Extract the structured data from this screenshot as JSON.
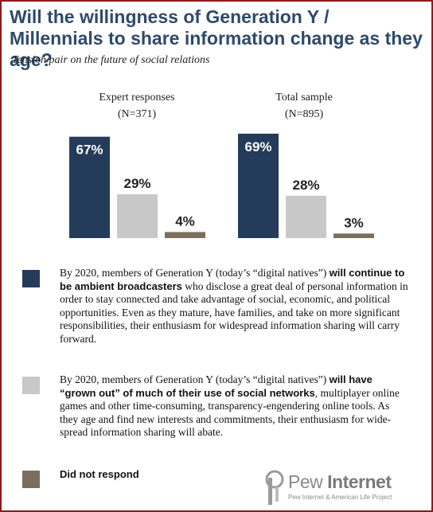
{
  "title": "Will the willingness of Generation Y / Millennials to share information change as they age?",
  "subtitle": "Tension pair on the future of social relations",
  "colors": {
    "broadcasters": "#243c5a",
    "grown_out": "#c8c8c8",
    "no_response": "#7b6e5c",
    "title": "#2e4a6a",
    "frame": "#8b1a1a"
  },
  "chart_data": {
    "type": "bar",
    "categories": [
      "Expert responses (N=371)",
      "Total sample (N=895)"
    ],
    "series": [
      {
        "name": "will continue to be ambient broadcasters",
        "values": [
          67,
          69
        ]
      },
      {
        "name": "will have \"grown out\" of much of their use of social networks",
        "values": [
          29,
          28
        ]
      },
      {
        "name": "Did not respond",
        "values": [
          4,
          3
        ]
      }
    ],
    "value_labels": [
      [
        "67%",
        "29%",
        "4%"
      ],
      [
        "69%",
        "28%",
        "3%"
      ]
    ],
    "ylim": [
      0,
      100
    ],
    "grid": false,
    "legend_position": "bottom"
  },
  "groups": [
    {
      "label": "Expert responses",
      "n": "(N=371)"
    },
    {
      "label": "Total sample",
      "n": "(N=895)"
    }
  ],
  "legend": [
    {
      "pre": "By 2020, members of Generation Y (today’s “digital natives”) ",
      "bold": "will continue to be ambient broadcasters",
      "post": " who disclose a great deal of personal information in order to stay connected and take advantage of social, economic, and political opportunities. Even as they mature, have families, and take on more significant responsibilities, their enthusiasm for widespread information sharing will carry forward."
    },
    {
      "pre": "By 2020, members of Generation Y (today’s “digital natives”) ",
      "bold": "will have “grown out” of much of their use of social networks",
      "post": ", multiplayer online games and other time-consuming, transparency-engendering online tools. As they age and find new interests and commitments, their enthusiasm for wide-spread information sharing will abate."
    },
    {
      "pre": "",
      "bold": "Did not respond",
      "post": ""
    }
  ],
  "logo": {
    "name_light": "Pew",
    "name_bold": "Internet",
    "tagline": "Pew Internet & American Life Project"
  }
}
